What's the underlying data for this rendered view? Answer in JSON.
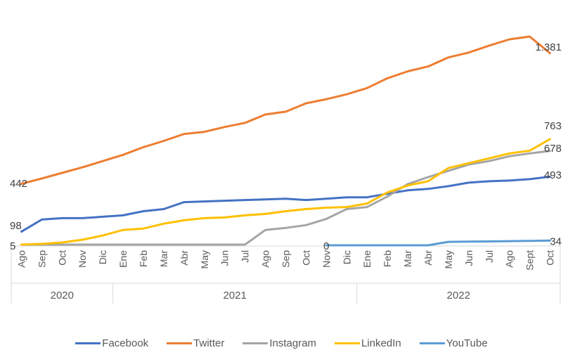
{
  "chart_data": {
    "type": "line",
    "categories": [
      "Ago",
      "Sep",
      "Oct",
      "Nov",
      "Dic",
      "Ene",
      "Feb",
      "Mar",
      "Abr",
      "May",
      "Jun",
      "Jul",
      "Ago",
      "Sep",
      "Oct",
      "Nov",
      "Dic",
      "Ene",
      "Feb",
      "Mar",
      "Abr",
      "May",
      "Jun",
      "Jul",
      "Ago",
      "Sept",
      "Oct"
    ],
    "year_groups": [
      {
        "label": "2020",
        "start": 0,
        "end": 4
      },
      {
        "label": "2021",
        "start": 5,
        "end": 16
      },
      {
        "label": "2022",
        "start": 17,
        "end": 26
      }
    ],
    "ylim": [
      0,
      1500
    ],
    "grid": false,
    "legend_position": "bottom",
    "series": [
      {
        "name": "Facebook",
        "color": "#4472C4",
        "values": [
          98,
          185,
          195,
          195,
          205,
          215,
          245,
          260,
          310,
          315,
          320,
          325,
          330,
          335,
          325,
          335,
          345,
          345,
          370,
          395,
          405,
          425,
          450,
          460,
          465,
          475,
          493
        ]
      },
      {
        "name": "Twitter",
        "color": "#ED7D31",
        "values": [
          442,
          480,
          520,
          560,
          605,
          650,
          705,
          750,
          800,
          815,
          850,
          880,
          940,
          960,
          1020,
          1050,
          1085,
          1130,
          1200,
          1250,
          1285,
          1350,
          1385,
          1435,
          1480,
          1500,
          1381
        ]
      },
      {
        "name": "Instagram",
        "color": "#A5A5A5",
        "values": [
          5,
          5,
          5,
          5,
          5,
          5,
          5,
          5,
          5,
          5,
          5,
          5,
          110,
          125,
          145,
          190,
          260,
          275,
          350,
          440,
          490,
          535,
          580,
          605,
          640,
          660,
          678
        ]
      },
      {
        "name": "LinkedIn",
        "color": "#FFC000",
        "values": [
          5,
          10,
          20,
          40,
          70,
          110,
          120,
          155,
          180,
          195,
          200,
          215,
          225,
          245,
          260,
          270,
          275,
          300,
          380,
          430,
          460,
          555,
          590,
          625,
          660,
          680,
          763
        ]
      },
      {
        "name": "YouTube",
        "color": "#5B9BD5",
        "values": [
          null,
          null,
          null,
          null,
          null,
          null,
          null,
          null,
          null,
          null,
          null,
          null,
          null,
          null,
          null,
          0,
          0,
          0,
          0,
          0,
          0,
          25,
          27,
          28,
          30,
          32,
          34
        ]
      }
    ],
    "data_labels": [
      {
        "series": "Facebook",
        "index": 0,
        "text": "98"
      },
      {
        "series": "Twitter",
        "index": 0,
        "text": "442"
      },
      {
        "series": "Instagram",
        "index": 0,
        "text": "5"
      },
      {
        "series": "Twitter",
        "index": 26,
        "text": "1.381"
      },
      {
        "series": "LinkedIn",
        "index": 26,
        "text": "763"
      },
      {
        "series": "Instagram",
        "index": 26,
        "text": "678"
      },
      {
        "series": "Facebook",
        "index": 26,
        "text": "493"
      },
      {
        "series": "YouTube",
        "index": 15,
        "text": "0"
      },
      {
        "series": "YouTube",
        "index": 26,
        "text": "34"
      }
    ]
  }
}
